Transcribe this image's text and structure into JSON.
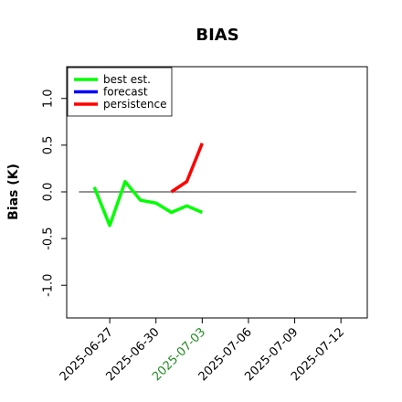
{
  "chart_data": {
    "type": "line",
    "title": "BIAS",
    "y_label": "Bias (K)",
    "x": [
      "2025-06-26",
      "2025-06-27",
      "2025-06-28",
      "2025-06-29",
      "2025-06-30",
      "2025-07-01",
      "2025-07-02",
      "2025-07-03"
    ],
    "series": [
      {
        "name": "best est.",
        "color": "#00ff00",
        "values": [
          0.05,
          -0.36,
          0.11,
          -0.09,
          -0.12,
          -0.22,
          -0.15,
          -0.22
        ]
      },
      {
        "name": "forecast",
        "color": "#0000ff",
        "values": [
          null,
          null,
          null,
          null,
          null,
          null,
          null,
          null
        ]
      },
      {
        "name": "persistence",
        "color": "#ff0000",
        "values": [
          null,
          null,
          null,
          null,
          null,
          0.0,
          0.11,
          0.52
        ]
      }
    ],
    "xlim": [
      "2025-06-24T05:00",
      "2025-07-13T17:00"
    ],
    "xticks": [
      "2025-06-27",
      "2025-06-30",
      "2025-07-03",
      "2025-07-06",
      "2025-07-09",
      "2025-07-12"
    ],
    "highlight_xtick": 2,
    "highlight_color": "#228b22",
    "ylim": [
      -1.35,
      1.34
    ],
    "yticks": [
      {
        "value": -1,
        "label": "-1.0"
      },
      {
        "value": -0.5,
        "label": "-0.5"
      },
      {
        "value": 0,
        "label": "0.0"
      },
      {
        "value": 0.5,
        "label": "0.5"
      },
      {
        "value": 1,
        "label": "1.0"
      }
    ],
    "hline": 0,
    "hline_x": [
      "2025-06-25",
      "2025-07-13"
    ],
    "hline_color": "#555555",
    "legend": "upper left"
  }
}
